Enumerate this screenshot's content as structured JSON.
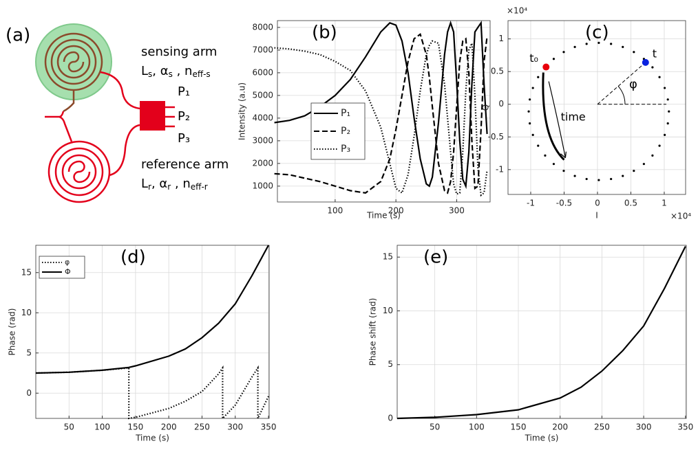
{
  "diagram": {
    "label": "(a)",
    "sensing_arm": {
      "title": "sensing arm",
      "params": [
        [
          "L",
          "s"
        ],
        [
          ", α",
          "s"
        ],
        [
          " , n",
          "eff-s"
        ]
      ]
    },
    "reference_arm": {
      "title": "reference arm",
      "params": [
        [
          "L",
          "r"
        ],
        [
          ", α",
          "r"
        ],
        [
          " , n",
          "eff-r"
        ]
      ]
    },
    "ports": [
      "P₁",
      "P₂",
      "P₃"
    ]
  },
  "chart_data": [
    {
      "type": "line",
      "title": "(b)",
      "xlabel": "Time (s)",
      "ylabel": "Intensity (a.u)",
      "xlim": [
        5,
        355
      ],
      "ylim": [
        300,
        8300
      ],
      "xticks": [
        100,
        200,
        300
      ],
      "yticks": [
        1000,
        2000,
        3000,
        4000,
        5000,
        6000,
        7000,
        8000
      ],
      "grid": true,
      "legend": "lower left",
      "x": [
        0,
        25,
        50,
        75,
        100,
        125,
        150,
        175,
        190,
        200,
        210,
        220,
        230,
        240,
        250,
        255,
        260,
        270,
        280,
        285,
        290,
        295,
        300,
        305,
        310,
        315,
        320,
        325,
        330,
        335,
        340,
        345,
        350
      ],
      "series": [
        {
          "name": "P₁",
          "color": "#000000",
          "style": "solid",
          "values": [
            3800,
            3900,
            4100,
            4500,
            5000,
            5700,
            6700,
            7800,
            8200,
            8100,
            7400,
            6000,
            4000,
            2200,
            1100,
            1000,
            1400,
            3800,
            6800,
            7800,
            8200,
            7800,
            5600,
            3000,
            1300,
            1000,
            2500,
            5500,
            7800,
            8000,
            8200,
            5500,
            3300
          ]
        },
        {
          "name": "P₂",
          "color": "#000000",
          "style": "dashed",
          "values": [
            1550,
            1500,
            1350,
            1200,
            1000,
            800,
            700,
            1200,
            2200,
            3500,
            5000,
            6500,
            7500,
            7700,
            6800,
            5800,
            4500,
            2000,
            800,
            700,
            1200,
            2500,
            4500,
            6500,
            7400,
            7500,
            6000,
            3000,
            900,
            1000,
            3500,
            6500,
            7600
          ]
        },
        {
          "name": "P₃",
          "color": "#000000",
          "style": "dotted",
          "values": [
            7100,
            7050,
            6950,
            6800,
            6500,
            6100,
            5200,
            3600,
            2000,
            900,
            700,
            1500,
            3200,
            5200,
            6800,
            7200,
            7400,
            7300,
            5500,
            4000,
            2500,
            1100,
            650,
            700,
            2500,
            5200,
            7000,
            7300,
            5000,
            1800,
            600,
            700,
            1700
          ]
        }
      ]
    },
    {
      "type": "scatter",
      "title": "(c)",
      "xlabel": "I",
      "ylabel": "Q",
      "x_multiplier": "×10⁴",
      "y_multiplier": "×10⁴",
      "xlim": [
        -1.34,
        1.32
      ],
      "ylim": [
        -1.38,
        1.28
      ],
      "xticks": [
        -1,
        -0.5,
        0,
        0.5,
        1
      ],
      "yticks": [
        -1,
        -0.5,
        0,
        0.5,
        1
      ],
      "grid": true,
      "color": "#000000",
      "x": [
        1.07,
        1.054,
        1.007,
        0.929,
        0.824,
        0.695,
        0.545,
        0.379,
        0.203,
        0.02,
        -0.163,
        -0.339,
        -0.505,
        -0.655,
        -0.784,
        -0.889,
        -0.967,
        -1.014,
        -1.03,
        -1.014,
        -0.967,
        -0.889,
        -0.784,
        -0.655,
        -0.505,
        -0.339,
        -0.163,
        0.02,
        0.203,
        0.379,
        0.545,
        0.695,
        0.824,
        0.929,
        1.007,
        1.054
      ],
      "y": [
        -0.11,
        0.073,
        0.249,
        0.415,
        0.565,
        0.694,
        0.799,
        0.877,
        0.924,
        0.94,
        0.924,
        0.877,
        0.799,
        0.694,
        0.565,
        0.415,
        0.249,
        0.073,
        -0.11,
        -0.293,
        -0.469,
        -0.635,
        -0.785,
        -0.914,
        -1.019,
        -1.097,
        -1.144,
        -1.16,
        -1.144,
        -1.097,
        -1.019,
        -0.914,
        -0.785,
        -0.635,
        -0.469,
        -0.293
      ],
      "markers": [
        {
          "label": "t₀",
          "x": -0.77,
          "y": 0.57,
          "color": "#e8000b"
        },
        {
          "label": "t",
          "x": 0.72,
          "y": 0.64,
          "color": "#0a22e0"
        }
      ],
      "annotations": {
        "time": "time",
        "angle": "φ"
      }
    },
    {
      "type": "line",
      "title": "(d)",
      "xlabel": "Time (s)",
      "ylabel": "Phase (rad)",
      "xlim": [
        0,
        351
      ],
      "ylim": [
        -3.14,
        18.4
      ],
      "xticks": [
        50,
        100,
        150,
        200,
        250,
        300,
        350
      ],
      "yticks": [
        0,
        5,
        10,
        15
      ],
      "grid": true,
      "legend": "upper left",
      "series": [
        {
          "name": "φ",
          "color": "#000000",
          "style": "dotted",
          "x": [
            0,
            50,
            100,
            140,
            140,
            150,
            200,
            225,
            250,
            275,
            281,
            281,
            300,
            325,
            334,
            334,
            350
          ],
          "values": [
            2.5,
            2.6,
            2.85,
            3.14,
            -3.14,
            -3.0,
            -1.9,
            -1.0,
            0.2,
            2.4,
            3.14,
            -3.14,
            -1.5,
            2.0,
            3.14,
            -3.14,
            -0.4
          ]
        },
        {
          "name": "Φ",
          "color": "#000000",
          "style": "solid",
          "x": [
            0,
            50,
            100,
            140,
            150,
            200,
            225,
            250,
            275,
            300,
            325,
            350
          ],
          "values": [
            2.5,
            2.6,
            2.85,
            3.2,
            3.4,
            4.6,
            5.5,
            6.9,
            8.7,
            11.1,
            14.6,
            18.4
          ]
        }
      ]
    },
    {
      "type": "line",
      "title": "(e)",
      "xlabel": "Time (s)",
      "ylabel": "Phase shift (rad)",
      "xlim": [
        5,
        351
      ],
      "ylim": [
        0,
        16.1
      ],
      "xticks": [
        50,
        100,
        150,
        200,
        250,
        300,
        350
      ],
      "yticks": [
        0,
        5,
        10,
        15
      ],
      "grid": true,
      "series": [
        {
          "color": "#000000",
          "style": "solid",
          "x": [
            5,
            50,
            100,
            150,
            200,
            225,
            250,
            275,
            300,
            325,
            350
          ],
          "values": [
            0,
            0.1,
            0.35,
            0.8,
            1.9,
            2.9,
            4.4,
            6.3,
            8.6,
            12.1,
            16
          ]
        }
      ]
    }
  ]
}
